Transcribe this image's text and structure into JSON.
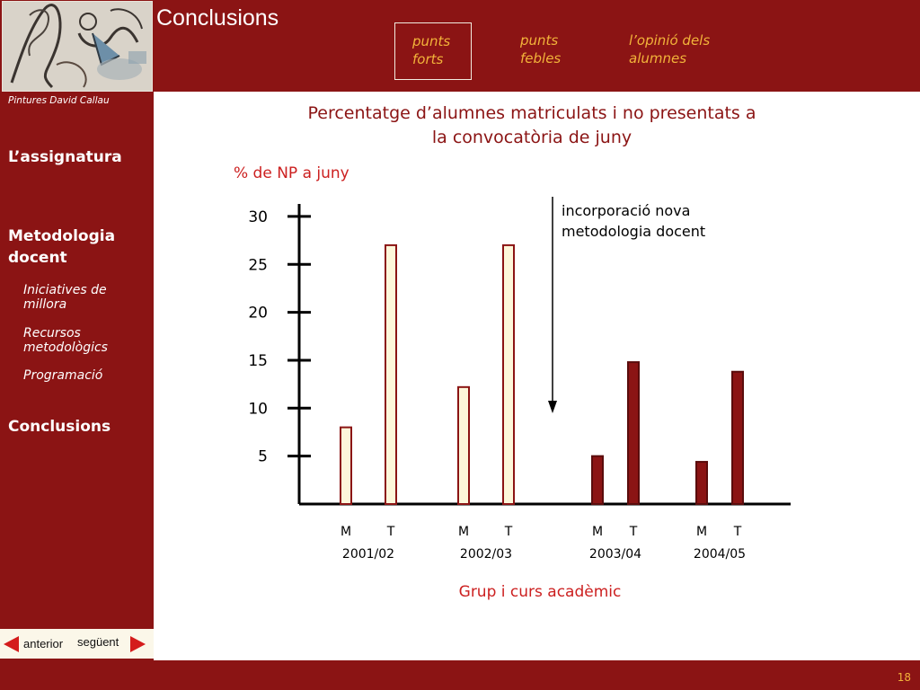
{
  "sidebar": {
    "credit": "Pintures David Callau",
    "items": [
      {
        "label": "L’assignatura"
      },
      {
        "label": "Metodologia docent",
        "line1": "Metodologia",
        "line2": "docent"
      },
      {
        "label": "Conclusions"
      }
    ],
    "subitems": [
      {
        "line1": "Iniciatives de",
        "line2": "millora"
      },
      {
        "line1": "Recursos",
        "line2": "metodològics"
      },
      {
        "line1": "Programació",
        "line2": ""
      }
    ],
    "prev_label": "anterior",
    "next_label": "següent"
  },
  "header": {
    "title": "Conclusions",
    "tabs": [
      {
        "line1": "punts",
        "line2": "forts",
        "active": true
      },
      {
        "line1": "punts",
        "line2": "febles",
        "active": false
      },
      {
        "line1": "l’opinió dels",
        "line2": "alumnes",
        "active": false
      }
    ]
  },
  "footer": {
    "slide_number": "18"
  },
  "colors": {
    "brand": "#8b1414",
    "tab_text": "#f2b33a",
    "bar_before": "#fdf7da",
    "bar_after": "#8b1414",
    "label_red": "#cc2020"
  },
  "chart_data": {
    "type": "bar",
    "title_line1": "Percentatge d’alumnes matriculats i no presentats a",
    "title_line2": "la convocatòria de juny",
    "ylabel": "% de NP a juny",
    "xlabel": "Grup i curs acadèmic",
    "ylim": [
      0,
      32
    ],
    "yticks": [
      5,
      10,
      15,
      20,
      25,
      30
    ],
    "groups": [
      {
        "year": "2001/02",
        "bars": [
          {
            "label": "M",
            "value": 8
          },
          {
            "label": "T",
            "value": 27
          }
        ],
        "style": "before"
      },
      {
        "year": "2002/03",
        "bars": [
          {
            "label": "M",
            "value": 12.2
          },
          {
            "label": "T",
            "value": 27
          }
        ],
        "style": "before"
      },
      {
        "year": "2003/04",
        "bars": [
          {
            "label": "M",
            "value": 5
          },
          {
            "label": "T",
            "value": 14.8
          }
        ],
        "style": "after"
      },
      {
        "year": "2004/05",
        "bars": [
          {
            "label": "M",
            "value": 4.4
          },
          {
            "label": "T",
            "value": 13.8
          }
        ],
        "style": "after"
      }
    ],
    "annotation": {
      "line1": "incorporació nova",
      "line2": "metodologia docent"
    },
    "grid": false
  }
}
